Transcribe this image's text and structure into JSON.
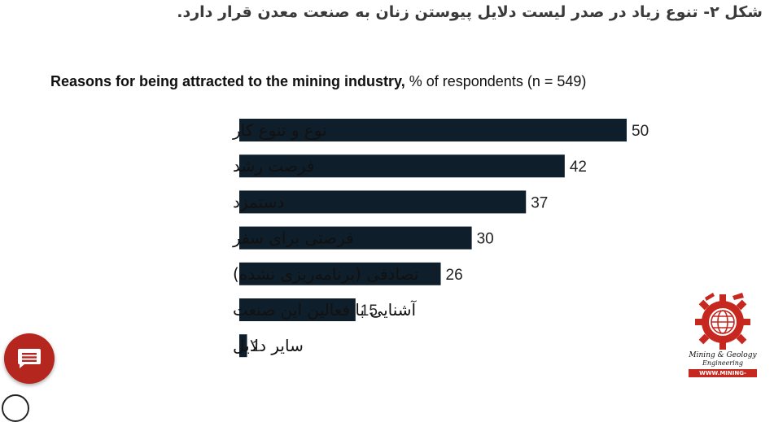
{
  "caption": "شکل ۲- تنوع زیاد در صدر لیست دلایل پیوستن زنان به صنعت معدن قرار دارد.",
  "chart_heading": {
    "bold": "Reasons for being attracted to the mining industry,",
    "rest": "% of respondents (n = 549)"
  },
  "chart_data": {
    "type": "bar",
    "orientation": "horizontal",
    "title": "Reasons for being attracted to the mining industry, % of respondents (n = 549)",
    "categories": [
      "نوع و تنوع کار",
      "فرصت رشد",
      "دستمزد",
      "فرصتی برای سفر",
      "تصادفی (برنامه‌ریزی نشده)",
      "آشنایی با فعالین این صنعت",
      "سایر دلایل"
    ],
    "values": [
      50,
      42,
      37,
      30,
      26,
      15,
      1
    ],
    "xlim": [
      0,
      50
    ],
    "bar_color": "#0f1e2b",
    "grid": false,
    "legend": "none"
  },
  "logo": {
    "line1": "Mining & Geology",
    "line2": "Engineering",
    "url": "WWW.MINING-ENG.IR",
    "color": "#c6271f"
  },
  "fab": {
    "icon": "chat-icon",
    "color": "#b5261e"
  }
}
